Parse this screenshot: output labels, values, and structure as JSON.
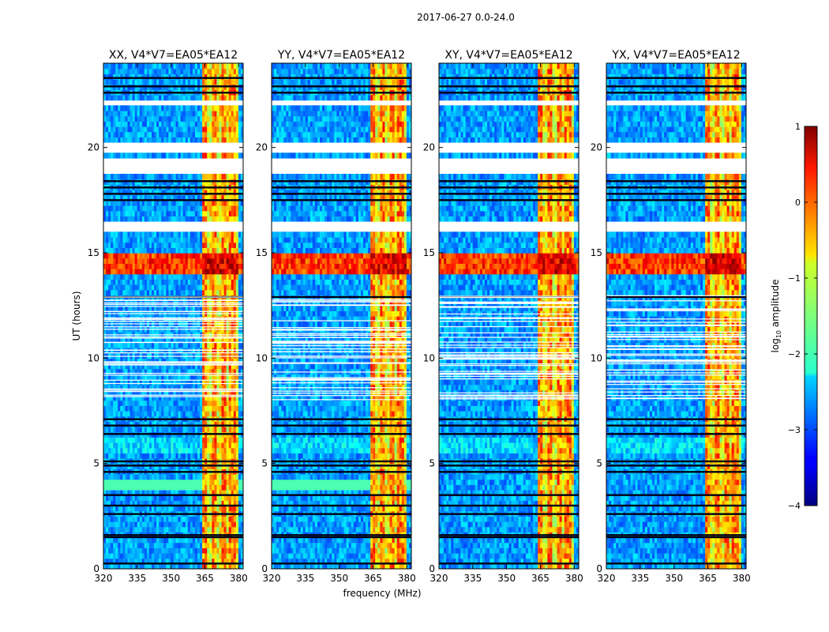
{
  "chart_data": {
    "type": "heatmap",
    "suptitle": "2017-06-27 0.0-24.0",
    "xlabel": "frequency (MHz)",
    "ylabel": "UT (hours)",
    "xlim": [
      320,
      382
    ],
    "ylim": [
      0,
      24
    ],
    "xticks": [
      320,
      335,
      350,
      365,
      380
    ],
    "yticks": [
      0,
      5,
      10,
      15,
      20
    ],
    "panels": [
      {
        "title": "XX, V4*V7=EA05*EA12",
        "pol": "XX"
      },
      {
        "title": "YY, V4*V7=EA05*EA12",
        "pol": "YY"
      },
      {
        "title": "XY, V4*V7=EA05*EA12",
        "pol": "XY"
      },
      {
        "title": "YX, V4*V7=EA05*EA12",
        "pol": "YX"
      }
    ],
    "colorbar": {
      "label_prefix": "log",
      "label_sub": "10",
      "label_suffix": " amplitude",
      "vmin": -4,
      "vmax": 1,
      "ticks": [
        -4,
        -3,
        -2,
        -1,
        0,
        1
      ],
      "tick_labels": [
        "−4",
        "−3",
        "−2",
        "−1",
        "0",
        "1"
      ],
      "colormap": "jet"
    },
    "rfi_band_mhz": [
      363.5,
      380
    ],
    "blanked_hours": [
      [
        16.0,
        16.6
      ],
      [
        18.8,
        19.4
      ],
      [
        19.8,
        20.2
      ],
      [
        21.9,
        22.3
      ]
    ],
    "strong_event_hours": [
      14.1,
      14.9
    ],
    "dark_line_hours": [
      0.25,
      1.5,
      1.6,
      2.6,
      3.0,
      3.5,
      4.6,
      4.9,
      5.1,
      6.4,
      6.8,
      7.1,
      12.9,
      17.5,
      17.8,
      18.1,
      18.4,
      22.6,
      22.9,
      23.3
    ],
    "colors": {
      "background": "#ffffff",
      "axes": "#000000",
      "jet_low": "#00007f",
      "jet_high": "#7f0000"
    }
  }
}
